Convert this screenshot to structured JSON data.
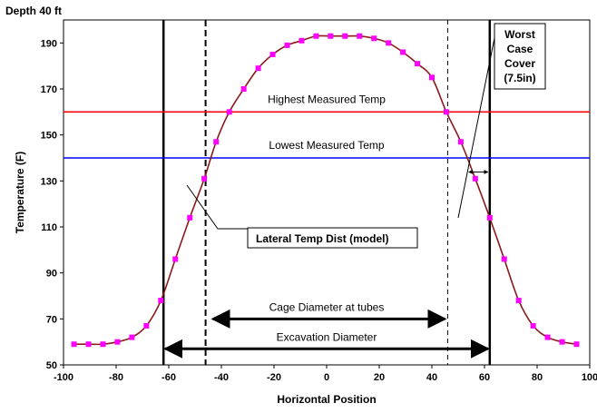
{
  "chart_data": {
    "type": "line",
    "top_label": "Depth 40 ft",
    "xlabel": "Horizontal Position",
    "ylabel": "Temperature (F)",
    "xlim": [
      -100,
      100
    ],
    "ylim": [
      50,
      200
    ],
    "x_ticks": [
      -100,
      -80,
      -60,
      -40,
      -20,
      0,
      20,
      40,
      60,
      80,
      100
    ],
    "y_ticks": [
      50,
      70,
      90,
      110,
      130,
      150,
      170,
      190
    ],
    "grid": false,
    "series": [
      {
        "name": "Lateral Temp Dist (model)",
        "color": "#8b1a1a",
        "marker_color": "#ff00ff",
        "x": [
          -96,
          -90.5,
          -85,
          -79.5,
          -74,
          -68.5,
          -63,
          -57.5,
          -52,
          -46.5,
          -42,
          -37,
          -31.5,
          -26,
          -20.5,
          -15,
          -9.5,
          -4,
          1.5,
          7,
          12.5,
          18,
          23.5,
          29,
          34.5,
          40,
          45.5,
          51,
          56.5,
          62,
          67.5,
          73,
          78.5,
          84,
          89.5,
          95
        ],
        "y": [
          59,
          59,
          59,
          60,
          62,
          67,
          78,
          96,
          114,
          131,
          147,
          160,
          170,
          179,
          185,
          189,
          191,
          193,
          193,
          193,
          193,
          192,
          190,
          186,
          181,
          175,
          160,
          147,
          131,
          114,
          96,
          78,
          67,
          62,
          60,
          59
        ]
      }
    ],
    "reference_lines": [
      {
        "name": "Highest Measured Temp",
        "y": 160,
        "color": "#ff0000"
      },
      {
        "name": "Lowest Measured Temp",
        "y": 140,
        "color": "#0000ff"
      }
    ],
    "vertical_lines": [
      {
        "x": -62,
        "style": "solid"
      },
      {
        "x": -46,
        "style": "dashed"
      },
      {
        "x": 46,
        "style": "dashed"
      },
      {
        "x": 62,
        "style": "solid"
      }
    ],
    "annotations": {
      "cage": {
        "label": "Cage Diameter at tubes",
        "x_from": -46,
        "x_to": 46,
        "y": 70
      },
      "excavation": {
        "label": "Excavation Diameter",
        "x_from": -62,
        "x_to": 62,
        "y": 57
      },
      "model_label": "Lateral Temp Dist (model)",
      "worst_case_lines": [
        "Worst",
        "Case",
        "Cover",
        "(7.5in)"
      ],
      "cover_arrow": {
        "x_from": 54,
        "x_to": 62,
        "y": 141
      }
    }
  }
}
